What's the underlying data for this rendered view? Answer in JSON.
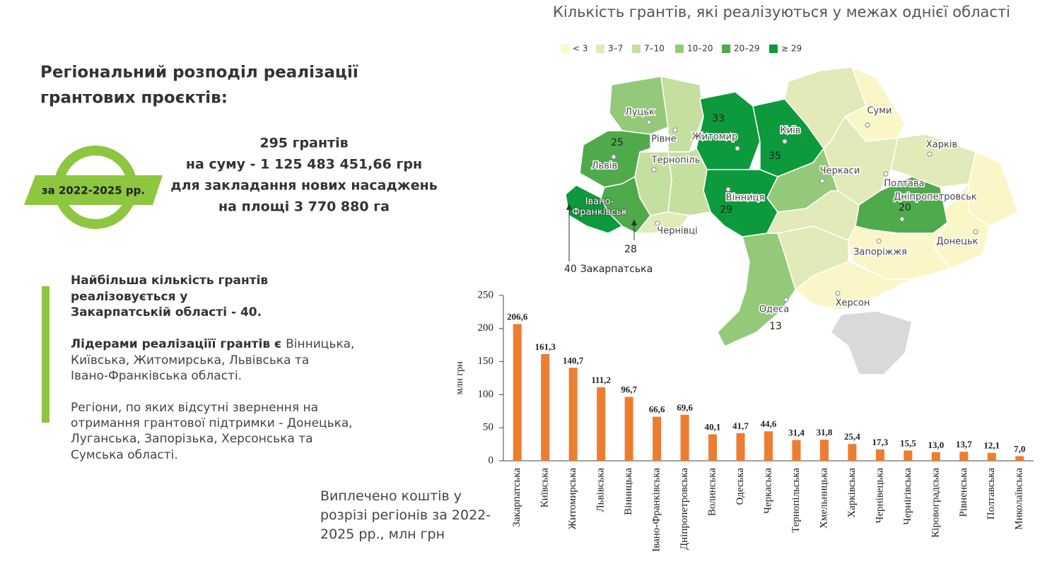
{
  "header": {
    "title_lines": [
      "Регіональний розподіл реалізації",
      "грантових проєктів:"
    ]
  },
  "badge": "за 2022-2025 рр.",
  "summary": [
    "295 грантів",
    "на суму - 1 125 483 451,66 грн",
    "для закладання нових насаджень",
    "на площі 3 770 880 га"
  ],
  "notes": {
    "highlight": [
      "Найбільша кількість грантів",
      "реалізовується у",
      "Закарпатській області  - 40."
    ],
    "leaders_bold": "Лідерами реалізаціїї грантів є",
    "leaders": [
      "Вінницька,",
      "Київська, Житомирська, Львівська та",
      "Івано-Франківська області."
    ],
    "missing": [
      "Регіони, по яких відсутні звернення на",
      "отримання грантової підтримки -  Донецька,",
      "Луганська, Запорізька, Херсонська та",
      "Сумська області."
    ]
  },
  "map": {
    "title": "Кількість грантів, які реалізуються у межах однієї області",
    "legend": [
      {
        "label": "< 3",
        "color": "#fbf6c7"
      },
      {
        "label": "3–7",
        "color": "#e1eab8"
      },
      {
        "label": "7–10",
        "color": "#c4dfa0"
      },
      {
        "label": "10–20",
        "color": "#94c97a"
      },
      {
        "label": "20–29",
        "color": "#4faa4c"
      },
      {
        "label": "≥ 29",
        "color": "#0d9a3c"
      }
    ],
    "cities": [
      "Луцьк",
      "Рівне",
      "Житомир",
      "Київ",
      "Суми",
      "Харків",
      "Львів",
      "Тернопіль",
      "Черкаси",
      "Полтава",
      "Вінниця",
      "Дніпропетровськ",
      "Івано-Франківськ",
      "Чернівці",
      "Запоріжжя",
      "Донецьк",
      "Одеса",
      "Херсон"
    ],
    "counts": [
      25,
      33,
      35,
      29,
      20,
      28,
      13
    ],
    "callout": {
      "value": 40,
      "label": "Закарпатська"
    }
  },
  "chart_data": {
    "type": "bar",
    "title": "Виплечено коштів у розрізі регіонів за 2022-2025 рр., млн грн",
    "y_label": "млн грн",
    "categories": [
      "Закарпатська",
      "Київська",
      "Житомирська",
      "Львівська",
      "Вінницька",
      "Івано-Франківська",
      "Дніпропетровська",
      "Волинська",
      "Одеська",
      "Черкаська",
      "Тернопільська",
      "Хмельницька",
      "Харківська",
      "Чернівецька",
      "Чернігівська",
      "Кіровоградська",
      "Рівненська",
      "Полтавська",
      "Миколаївська"
    ],
    "values": [
      206.6,
      161.3,
      140.7,
      111.2,
      96.7,
      66.6,
      69.6,
      40.1,
      41.7,
      44.6,
      31.4,
      31.8,
      25.4,
      17.3,
      15.5,
      13.0,
      13.7,
      12.1,
      7.0
    ],
    "value_labels": [
      "206,6",
      "161,3",
      "140,7",
      "111,2",
      "96,7",
      "66,6",
      "69,6",
      "40,1",
      "41,7",
      "44,6",
      "31,4",
      "31,8",
      "25,4",
      "17,3",
      "15,5",
      "13,0",
      "13,7",
      "12,1",
      "7,0"
    ],
    "color": "#ed7d31",
    "ylim": [
      0,
      250
    ],
    "yticks": [
      0,
      50,
      100,
      150,
      200,
      250
    ],
    "grid": false
  }
}
